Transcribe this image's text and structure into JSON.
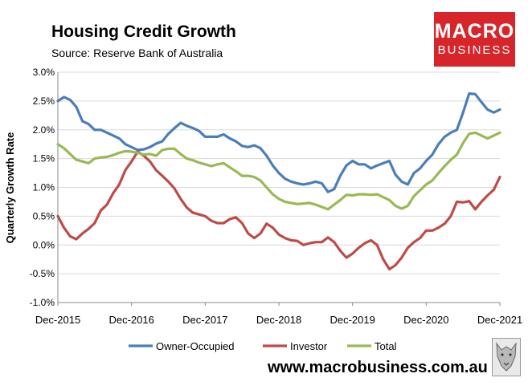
{
  "header": {
    "title": "Housing Credit Growth",
    "source": "Source: Reserve Bank of Australia"
  },
  "logo": {
    "line1": "MACRO",
    "line2": "BUSINESS"
  },
  "footer": {
    "url": "www.macrobusiness.com.au"
  },
  "colors": {
    "owner_occupied": "#4a7ebb",
    "investor": "#be4b48",
    "total": "#98b954",
    "brand_red": "#d7262b"
  },
  "chart_data": {
    "type": "line",
    "title": "Housing Credit Growth",
    "ylabel": "Quarterly Growth Rate",
    "xlabel": "",
    "ylim": [
      -1.0,
      3.0
    ],
    "yticks": [
      "-1.0%",
      "-0.5%",
      "0.0%",
      "0.5%",
      "1.0%",
      "1.5%",
      "2.0%",
      "2.5%",
      "3.0%"
    ],
    "ytick_values": [
      -1.0,
      -0.5,
      0.0,
      0.5,
      1.0,
      1.5,
      2.0,
      2.5,
      3.0
    ],
    "xticks": [
      "Dec-2015",
      "Dec-2016",
      "Dec-2017",
      "Dec-2018",
      "Dec-2019",
      "Dec-2020",
      "Dec-2021"
    ],
    "x_start": "Dec-2015",
    "x_end": "Dec-2021",
    "n_points": 73,
    "grid": "horizontal",
    "legend_position": "bottom",
    "series": [
      {
        "name": "Owner-Occupied",
        "color": "#4a7ebb",
        "values": [
          2.5,
          2.57,
          2.52,
          2.4,
          2.15,
          2.1,
          2.0,
          2.0,
          1.95,
          1.9,
          1.85,
          1.75,
          1.7,
          1.65,
          1.66,
          1.7,
          1.76,
          1.8,
          1.93,
          2.03,
          2.12,
          2.07,
          2.03,
          1.98,
          1.88,
          1.88,
          1.88,
          1.92,
          1.85,
          1.8,
          1.72,
          1.7,
          1.73,
          1.68,
          1.55,
          1.38,
          1.25,
          1.15,
          1.1,
          1.07,
          1.05,
          1.07,
          1.1,
          1.07,
          0.92,
          0.97,
          1.2,
          1.38,
          1.46,
          1.4,
          1.4,
          1.33,
          1.38,
          1.42,
          1.46,
          1.22,
          1.1,
          1.05,
          1.25,
          1.33,
          1.46,
          1.57,
          1.75,
          1.88,
          1.95,
          2.0,
          2.3,
          2.63,
          2.62,
          2.48,
          2.35,
          2.3,
          2.35
        ]
      },
      {
        "name": "Investor",
        "color": "#be4b48",
        "values": [
          0.5,
          0.3,
          0.15,
          0.1,
          0.2,
          0.28,
          0.38,
          0.6,
          0.7,
          0.9,
          1.05,
          1.3,
          1.45,
          1.62,
          1.55,
          1.45,
          1.3,
          1.2,
          1.1,
          0.98,
          0.8,
          0.65,
          0.56,
          0.53,
          0.5,
          0.42,
          0.38,
          0.38,
          0.45,
          0.48,
          0.38,
          0.2,
          0.12,
          0.2,
          0.37,
          0.3,
          0.18,
          0.12,
          0.08,
          0.07,
          0.0,
          0.03,
          0.05,
          0.05,
          0.13,
          0.05,
          -0.1,
          -0.22,
          -0.15,
          -0.05,
          0.03,
          0.08,
          0.0,
          -0.25,
          -0.42,
          -0.35,
          -0.22,
          -0.05,
          0.05,
          0.12,
          0.25,
          0.25,
          0.3,
          0.37,
          0.5,
          0.75,
          0.74,
          0.76,
          0.62,
          0.75,
          0.86,
          0.96,
          1.18
        ]
      },
      {
        "name": "Total",
        "color": "#98b954",
        "values": [
          1.75,
          1.68,
          1.58,
          1.48,
          1.45,
          1.42,
          1.5,
          1.52,
          1.53,
          1.56,
          1.6,
          1.63,
          1.62,
          1.6,
          1.57,
          1.58,
          1.55,
          1.65,
          1.67,
          1.67,
          1.58,
          1.5,
          1.47,
          1.43,
          1.4,
          1.37,
          1.4,
          1.42,
          1.35,
          1.28,
          1.2,
          1.2,
          1.18,
          1.12,
          1.0,
          0.88,
          0.8,
          0.75,
          0.73,
          0.71,
          0.72,
          0.73,
          0.7,
          0.66,
          0.62,
          0.7,
          0.78,
          0.87,
          0.86,
          0.88,
          0.88,
          0.87,
          0.88,
          0.83,
          0.78,
          0.68,
          0.63,
          0.68,
          0.85,
          0.95,
          1.05,
          1.12,
          1.25,
          1.37,
          1.48,
          1.57,
          1.77,
          1.93,
          1.95,
          1.9,
          1.85,
          1.9,
          1.95
        ]
      }
    ]
  }
}
